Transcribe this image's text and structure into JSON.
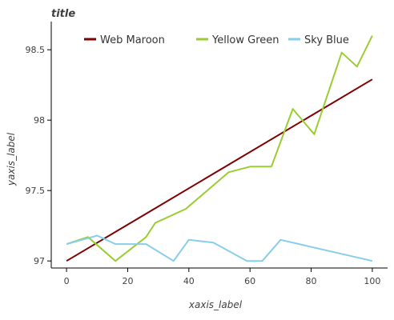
{
  "chart_data": {
    "type": "line",
    "title": "title",
    "xlabel": "xaxis_label",
    "ylabel": "yaxis_label",
    "xlim": [
      -5,
      105
    ],
    "ylim": [
      96.95,
      98.7
    ],
    "x_ticks": [
      0,
      20,
      40,
      60,
      80,
      100
    ],
    "x_tick_labels": [
      "0",
      "20",
      "40",
      "60",
      "80",
      "100"
    ],
    "y_ticks": [
      97,
      97.5,
      98,
      98.5
    ],
    "y_tick_labels": [
      "97",
      "97.5",
      "98",
      "98.5"
    ],
    "grid": false,
    "legend_position": "top",
    "series": [
      {
        "name": "Web Maroon",
        "color": "#800000",
        "x": [
          0,
          100
        ],
        "y": [
          97.0,
          98.29
        ]
      },
      {
        "name": "Yellow Green",
        "color": "#9acd32",
        "x": [
          0,
          7,
          16,
          26,
          29,
          39,
          53,
          60,
          67,
          74,
          81,
          90,
          95,
          100
        ],
        "y": [
          97.12,
          97.17,
          97.0,
          97.17,
          97.27,
          97.37,
          97.63,
          97.67,
          97.67,
          98.08,
          97.9,
          98.48,
          98.38,
          98.6
        ]
      },
      {
        "name": "Sky Blue",
        "color": "#87ceeb",
        "x": [
          0,
          10,
          16,
          26,
          35,
          40,
          48,
          59,
          64,
          70,
          100
        ],
        "y": [
          97.12,
          97.18,
          97.12,
          97.12,
          97.0,
          97.15,
          97.13,
          97.0,
          97.0,
          97.15,
          97.0
        ]
      }
    ]
  }
}
